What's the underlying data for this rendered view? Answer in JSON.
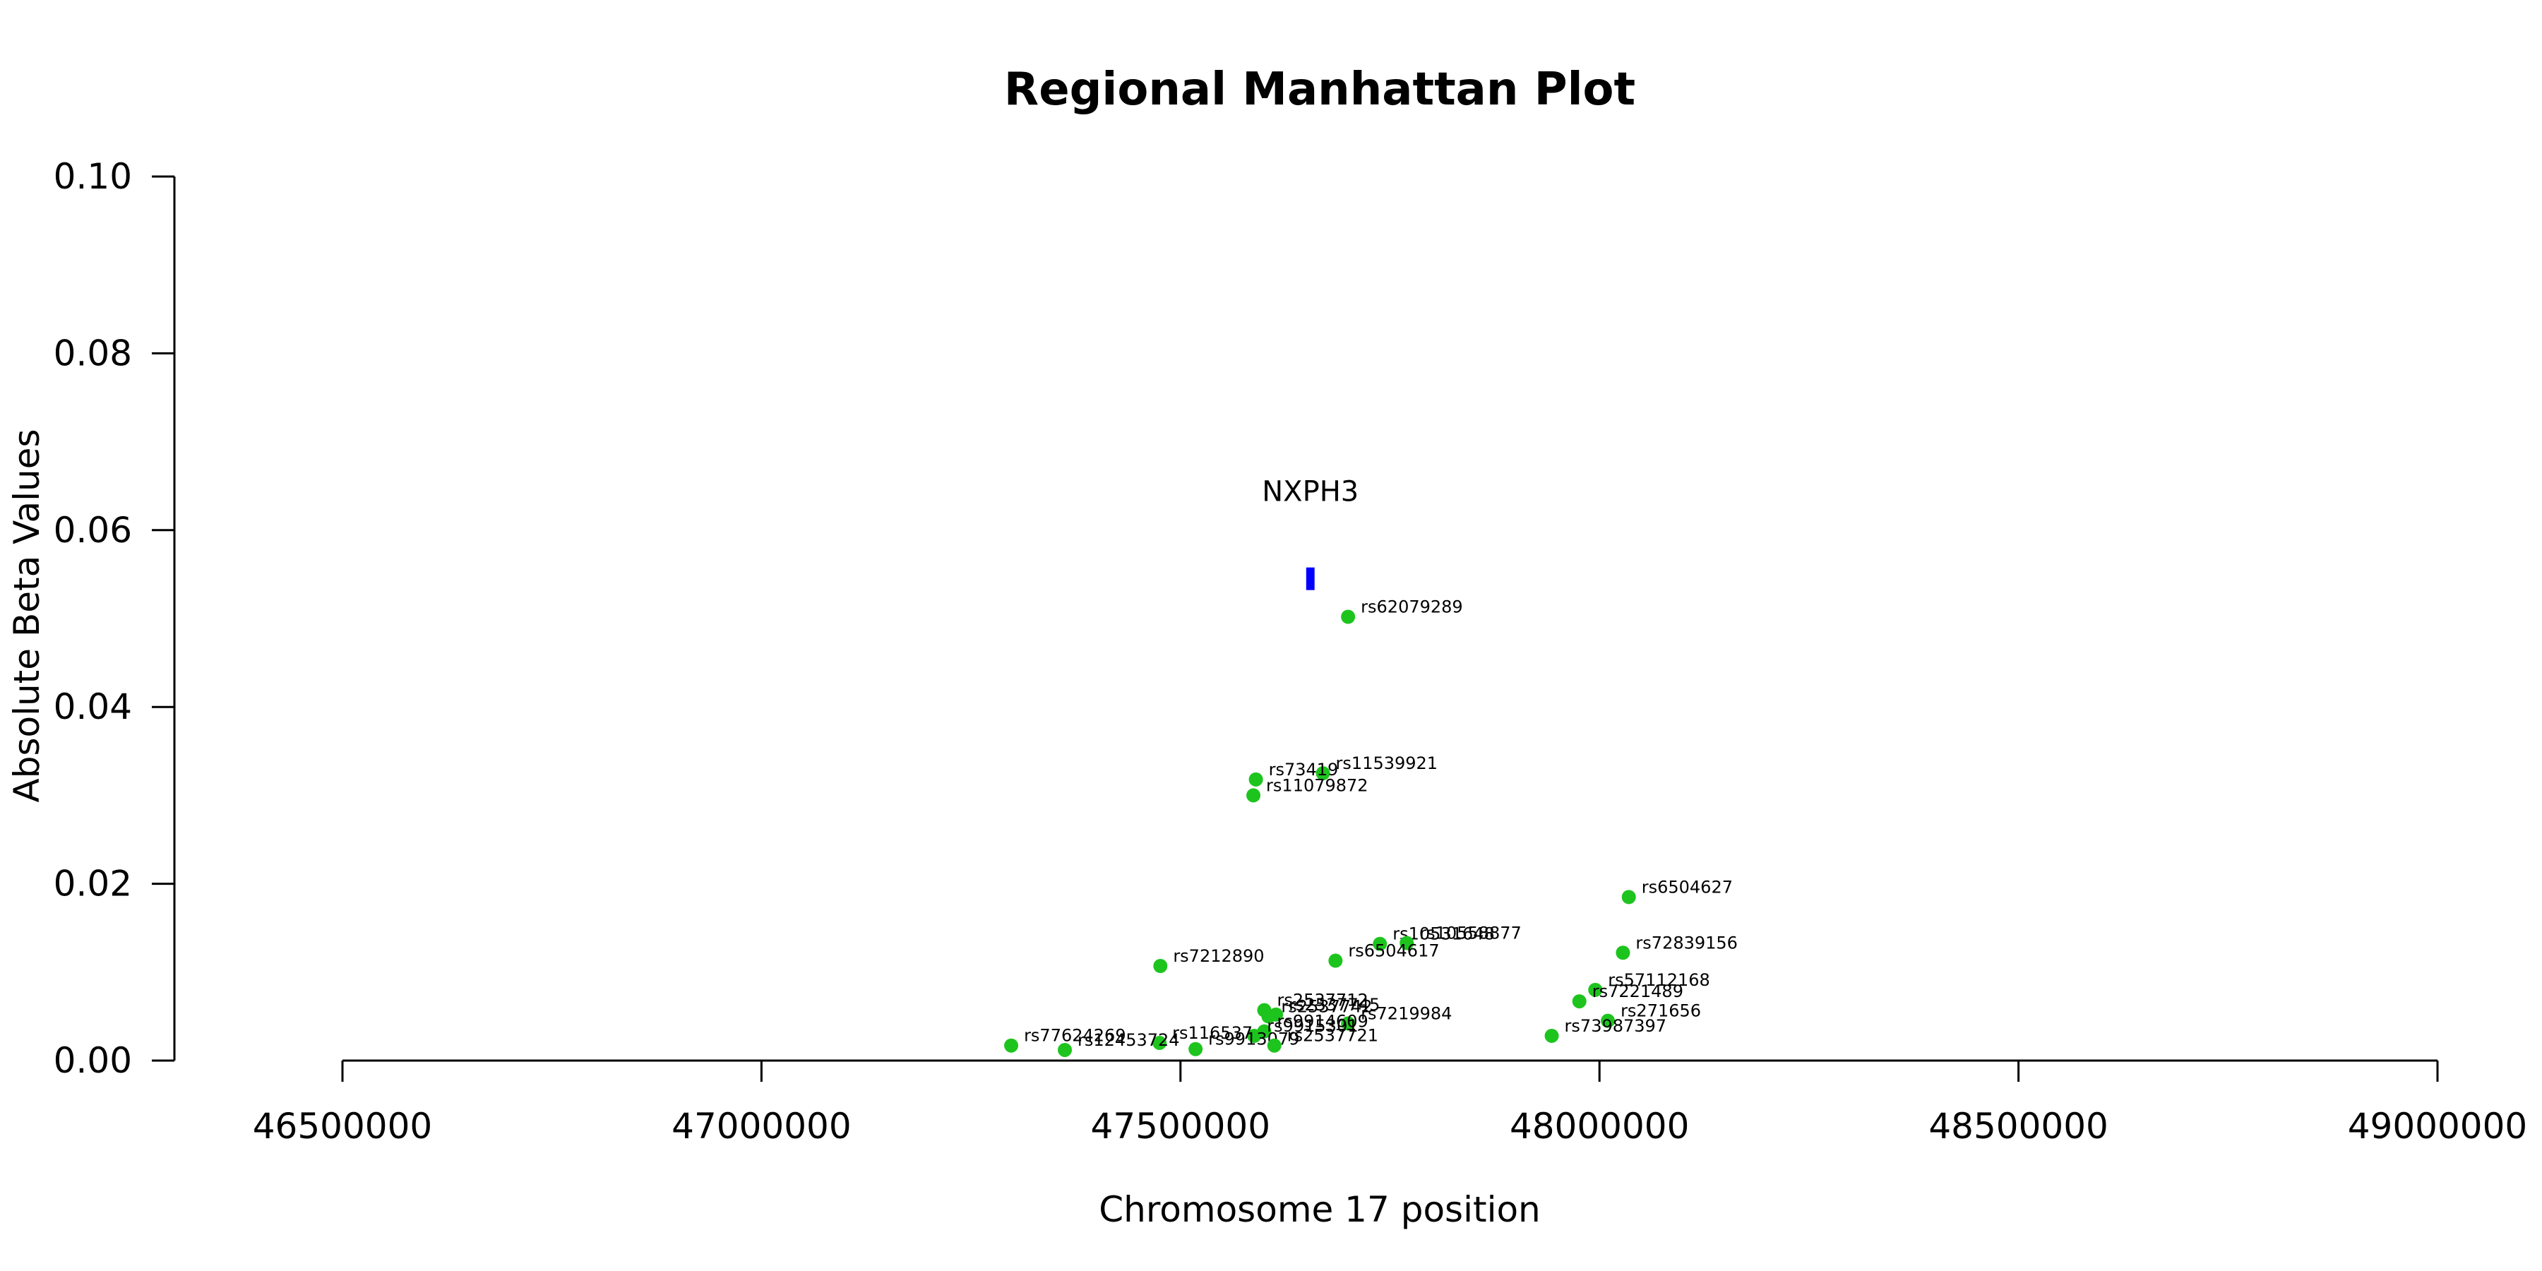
{
  "chart_data": {
    "type": "scatter",
    "title": "Regional Manhattan Plot",
    "xlabel": "Chromosome 17 position",
    "ylabel": "Absolute Beta Values",
    "xlim": [
      46500000,
      49000000
    ],
    "ylim": [
      0,
      0.1
    ],
    "x_ticks": [
      "46500000",
      "47000000",
      "47500000",
      "48000000",
      "48500000",
      "49000000"
    ],
    "y_ticks": [
      "0.00",
      "0.02",
      "0.04",
      "0.06",
      "0.08",
      "0.10"
    ],
    "grid": false,
    "point_color": "#1ec41e",
    "gene_color": "#0000ff",
    "gene": {
      "name": "NXPH3",
      "start": 47650000,
      "end": 47660000,
      "y": 0.0545
    },
    "points": [
      {
        "label": "rs62079289",
        "x": 47700000,
        "y": 0.0502
      },
      {
        "label": "rs11539921",
        "x": 47670000,
        "y": 0.0325
      },
      {
        "label": "rs73419",
        "x": 47590000,
        "y": 0.0318
      },
      {
        "label": "rs11079872",
        "x": 47587000,
        "y": 0.03
      },
      {
        "label": "rs6504627",
        "x": 48035000,
        "y": 0.0185
      },
      {
        "label": "rs10531648",
        "x": 47738000,
        "y": 0.0132
      },
      {
        "label": "rs10558877",
        "x": 47770000,
        "y": 0.0133
      },
      {
        "label": "rs72839156",
        "x": 48028000,
        "y": 0.0122
      },
      {
        "label": "rs6504617",
        "x": 47685000,
        "y": 0.0113
      },
      {
        "label": "rs7212890",
        "x": 47476000,
        "y": 0.0107
      },
      {
        "label": "rs57112168",
        "x": 47995000,
        "y": 0.008
      },
      {
        "label": "rs7221489",
        "x": 47976000,
        "y": 0.0067
      },
      {
        "label": "rs2537712",
        "x": 47600000,
        "y": 0.0057
      },
      {
        "label": "rs2537745",
        "x": 47614000,
        "y": 0.0052
      },
      {
        "label": "rs2537742",
        "x": 47605000,
        "y": 0.005
      },
      {
        "label": "rs7219984",
        "x": 47700000,
        "y": 0.0042
      },
      {
        "label": "rs271656",
        "x": 48010000,
        "y": 0.0045
      },
      {
        "label": "rs9914609",
        "x": 47600000,
        "y": 0.0033
      },
      {
        "label": "rs9915301",
        "x": 47588000,
        "y": 0.0028
      },
      {
        "label": "rs73987397",
        "x": 47943000,
        "y": 0.0028
      },
      {
        "label": "rs116537",
        "x": 47475000,
        "y": 0.002
      },
      {
        "label": "rs12453724",
        "x": 47362000,
        "y": 0.0012
      },
      {
        "label": "rs77624269",
        "x": 47298000,
        "y": 0.0017
      },
      {
        "label": "rs9913079",
        "x": 47518000,
        "y": 0.0013
      },
      {
        "label": "rs2537721",
        "x": 47612000,
        "y": 0.0017
      }
    ]
  }
}
